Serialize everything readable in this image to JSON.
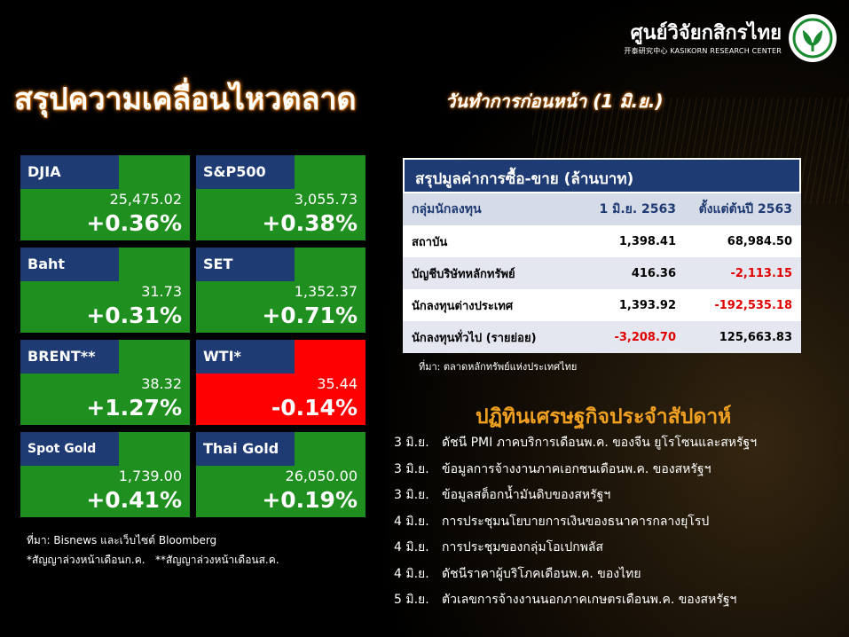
{
  "header": {
    "logo_name": "ศูนย์วิจัยกสิกรไทย",
    "logo_sub": "开泰研究中心 KASIKORN RESEARCH CENTER",
    "title": "สรุปความเคลื่อนไหวตลาด",
    "subtitle": "วันทำการก่อนหน้า (1 มิ.ย.)",
    "logo_color": "#1a8a2e"
  },
  "tiles": [
    {
      "name": "DJIA",
      "value": "25,475.02",
      "change": "+0.36%",
      "direction": "up"
    },
    {
      "name": "S&P500",
      "value": "3,055.73",
      "change": "+0.38%",
      "direction": "up"
    },
    {
      "name": "Baht",
      "value": "31.73",
      "change": "+0.31%",
      "direction": "up"
    },
    {
      "name": "SET",
      "value": "1,352.37",
      "change": "+0.71%",
      "direction": "up"
    },
    {
      "name": "BRENT**",
      "value": "38.32",
      "change": "+1.27%",
      "direction": "up"
    },
    {
      "name": "WTI*",
      "value": "35.44",
      "change": "-0.14%",
      "direction": "down"
    },
    {
      "name": "Spot Gold",
      "value": "1,739.00",
      "change": "+0.41%",
      "direction": "up"
    },
    {
      "name": "Thai Gold",
      "value": "26,050.00",
      "change": "+0.19%",
      "direction": "up"
    }
  ],
  "tile_colors": {
    "up": "#1f8f1f",
    "down": "#ff0000",
    "label_bg": "#1f3b73"
  },
  "notes": {
    "source": "ที่มา: Bisnews และเว็บไซต์ Bloomberg",
    "footnote": "*สัญญาล่วงหน้าเดือนก.ค.   **สัญญาล่วงหน้าเดือนส.ค."
  },
  "trade_table": {
    "title": "สรุปมูลค่าการซื้อ-ขาย (ล้านบาท)",
    "headers": [
      "กลุ่มนักลงทุน",
      "1 มิ.ย. 2563",
      "ตั้งแต่ต้นปี 2563"
    ],
    "rows": [
      {
        "group": "สถาบัน",
        "day": "1,398.41",
        "ytd": "68,984.50",
        "day_neg": false,
        "ytd_neg": false
      },
      {
        "group": "บัญชีบริษัทหลักทรัพย์",
        "day": "416.36",
        "ytd": "-2,113.15",
        "day_neg": false,
        "ytd_neg": true
      },
      {
        "group": "นักลงทุนต่างประเทศ",
        "day": "1,393.92",
        "ytd": "-192,535.18",
        "day_neg": false,
        "ytd_neg": true
      },
      {
        "group": "นักลงทุนทั่วไป (รายย่อย)",
        "day": "-3,208.70",
        "ytd": "125,663.83",
        "day_neg": true,
        "ytd_neg": false
      }
    ],
    "source": "ที่มา: ตลาดหลักทรัพย์แห่งประเทศไทย"
  },
  "calendar": {
    "title": "ปฏิทินเศรษฐกิจประจำสัปดาห์",
    "items": [
      {
        "date": "3 มิ.ย.",
        "event": "ดัชนี PMI ภาคบริการเดือนพ.ค. ของจีน ยูโรโซนและสหรัฐฯ"
      },
      {
        "date": "3 มิ.ย.",
        "event": "ข้อมูลการจ้างงานภาคเอกชนเดือนพ.ค. ของสหรัฐฯ"
      },
      {
        "date": "3 มิ.ย.",
        "event": "ข้อมูลสต็อกน้ำมันดิบของสหรัฐฯ"
      },
      {
        "date": "4 มิ.ย.",
        "event": "การประชุมนโยบายการเงินของธนาคารกลางยุโรป"
      },
      {
        "date": "4 มิ.ย.",
        "event": "การประชุมของกลุ่มโอเปกพลัส"
      },
      {
        "date": "4 มิ.ย.",
        "event": "ดัชนีราคาผู้บริโภคเดือนพ.ค. ของไทย"
      },
      {
        "date": "5 มิ.ย.",
        "event": "ตัวเลขการจ้างงานนอกภาคเกษตรเดือนพ.ค. ของสหรัฐฯ"
      }
    ]
  }
}
